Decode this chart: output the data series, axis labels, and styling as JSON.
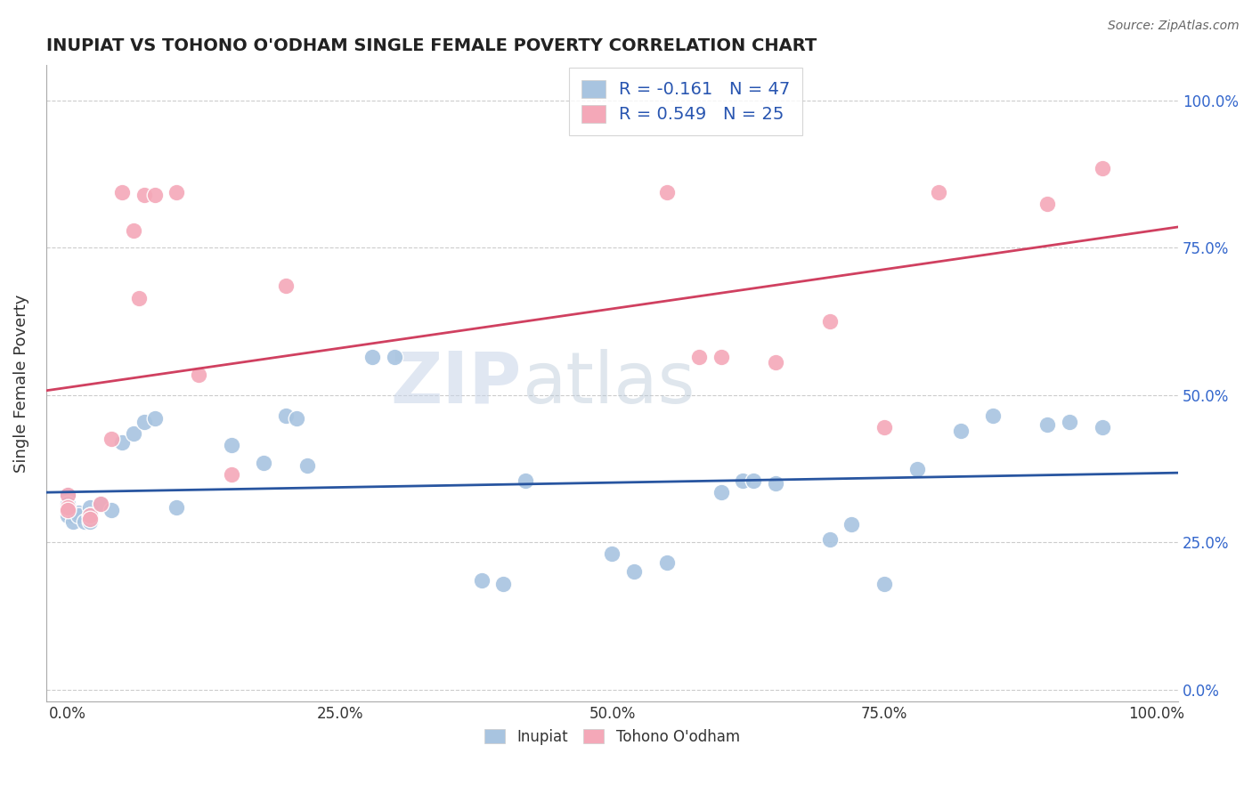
{
  "title": "INUPIAT VS TOHONO O'ODHAM SINGLE FEMALE POVERTY CORRELATION CHART",
  "source_text": "Source: ZipAtlas.com",
  "ylabel": "Single Female Poverty",
  "xlabel": "",
  "inupiat_R": -0.161,
  "inupiat_N": 47,
  "tohono_R": 0.549,
  "tohono_N": 25,
  "inupiat_color": "#a8c4e0",
  "tohono_color": "#f4a8b8",
  "inupiat_line_color": "#2855a0",
  "tohono_line_color": "#d04060",
  "background_color": "#ffffff",
  "grid_color": "#cccccc",
  "watermark_zip": "ZIP",
  "watermark_atlas": "atlas",
  "inupiat_points": [
    [
      0.0,
      0.33
    ],
    [
      0.0,
      0.315
    ],
    [
      0.0,
      0.305
    ],
    [
      0.0,
      0.3
    ],
    [
      0.0,
      0.295
    ],
    [
      0.005,
      0.3
    ],
    [
      0.005,
      0.295
    ],
    [
      0.005,
      0.285
    ],
    [
      0.01,
      0.3
    ],
    [
      0.01,
      0.295
    ],
    [
      0.015,
      0.285
    ],
    [
      0.02,
      0.31
    ],
    [
      0.02,
      0.295
    ],
    [
      0.02,
      0.285
    ],
    [
      0.03,
      0.315
    ],
    [
      0.04,
      0.305
    ],
    [
      0.05,
      0.42
    ],
    [
      0.06,
      0.435
    ],
    [
      0.07,
      0.455
    ],
    [
      0.08,
      0.46
    ],
    [
      0.1,
      0.31
    ],
    [
      0.15,
      0.415
    ],
    [
      0.18,
      0.385
    ],
    [
      0.2,
      0.465
    ],
    [
      0.21,
      0.46
    ],
    [
      0.22,
      0.38
    ],
    [
      0.28,
      0.565
    ],
    [
      0.3,
      0.565
    ],
    [
      0.38,
      0.185
    ],
    [
      0.4,
      0.18
    ],
    [
      0.42,
      0.355
    ],
    [
      0.5,
      0.23
    ],
    [
      0.52,
      0.2
    ],
    [
      0.55,
      0.215
    ],
    [
      0.6,
      0.335
    ],
    [
      0.62,
      0.355
    ],
    [
      0.63,
      0.355
    ],
    [
      0.65,
      0.35
    ],
    [
      0.7,
      0.255
    ],
    [
      0.72,
      0.28
    ],
    [
      0.75,
      0.18
    ],
    [
      0.78,
      0.375
    ],
    [
      0.82,
      0.44
    ],
    [
      0.85,
      0.465
    ],
    [
      0.9,
      0.45
    ],
    [
      0.92,
      0.455
    ],
    [
      0.95,
      0.445
    ]
  ],
  "tohono_points": [
    [
      0.0,
      0.33
    ],
    [
      0.0,
      0.31
    ],
    [
      0.0,
      0.305
    ],
    [
      0.02,
      0.295
    ],
    [
      0.02,
      0.29
    ],
    [
      0.03,
      0.315
    ],
    [
      0.04,
      0.425
    ],
    [
      0.05,
      0.845
    ],
    [
      0.06,
      0.78
    ],
    [
      0.065,
      0.665
    ],
    [
      0.07,
      0.84
    ],
    [
      0.08,
      0.84
    ],
    [
      0.1,
      0.845
    ],
    [
      0.12,
      0.535
    ],
    [
      0.15,
      0.365
    ],
    [
      0.2,
      0.685
    ],
    [
      0.55,
      0.845
    ],
    [
      0.58,
      0.565
    ],
    [
      0.6,
      0.565
    ],
    [
      0.65,
      0.555
    ],
    [
      0.7,
      0.625
    ],
    [
      0.75,
      0.445
    ],
    [
      0.8,
      0.845
    ],
    [
      0.9,
      0.825
    ],
    [
      0.95,
      0.885
    ]
  ],
  "xlim": [
    -0.02,
    1.02
  ],
  "ylim": [
    -0.02,
    1.06
  ],
  "xticks": [
    0.0,
    0.25,
    0.5,
    0.75,
    1.0
  ],
  "yticks": [
    0.0,
    0.25,
    0.5,
    0.75,
    1.0
  ],
  "xticklabels": [
    "0.0%",
    "25.0%",
    "50.0%",
    "75.0%",
    "100.0%"
  ],
  "ytick_right_labels": [
    "0.0%",
    "25.0%",
    "50.0%",
    "75.0%",
    "100.0%"
  ]
}
